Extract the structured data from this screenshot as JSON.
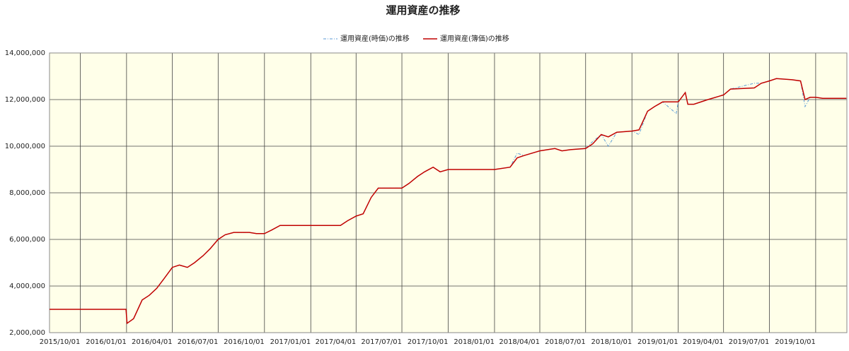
{
  "chart_data": {
    "type": "line",
    "title": "運用資産の推移",
    "x": [
      "2015/08/01",
      "2015/12/31",
      "2016/01/02",
      "2016/01/15",
      "2016/02/01",
      "2016/02/15",
      "2016/03/01",
      "2016/03/15",
      "2016/04/01",
      "2016/04/15",
      "2016/05/01",
      "2016/05/15",
      "2016/06/01",
      "2016/06/15",
      "2016/07/01",
      "2016/07/15",
      "2016/08/01",
      "2016/09/01",
      "2016/09/15",
      "2016/10/01",
      "2016/10/15",
      "2016/11/01",
      "2017/01/01",
      "2017/03/01",
      "2017/03/15",
      "2017/04/01",
      "2017/04/15",
      "2017/05/01",
      "2017/05/15",
      "2017/06/01",
      "2017/07/01",
      "2017/07/15",
      "2017/08/01",
      "2017/08/15",
      "2017/09/01",
      "2017/09/15",
      "2017/10/01",
      "2018/01/01",
      "2018/02/01",
      "2018/02/15",
      "2018/03/01",
      "2018/04/01",
      "2018/05/01",
      "2018/05/15",
      "2018/06/01",
      "2018/07/01",
      "2018/07/15",
      "2018/08/01",
      "2018/08/15",
      "2018/09/01",
      "2018/10/01",
      "2018/10/15",
      "2018/11/01",
      "2018/11/15",
      "2018/12/01",
      "2018/12/28",
      "2019/01/01",
      "2019/01/15",
      "2019/01/20",
      "2019/02/01",
      "2019/03/01",
      "2019/04/01",
      "2019/04/15",
      "2019/06/01",
      "2019/06/15",
      "2019/07/01",
      "2019/07/15",
      "2019/08/15",
      "2019/09/01",
      "2019/09/10",
      "2019/09/20",
      "2019/10/01",
      "2019/10/15",
      "2019/12/01"
    ],
    "series": [
      {
        "name": "運用資産(時価)の推移",
        "color": "#5b9bd5",
        "values": [
          3000000,
          3000000,
          2400000,
          2600000,
          3400000,
          3600000,
          3900000,
          4300000,
          4800000,
          4900000,
          4800000,
          5000000,
          5300000,
          5600000,
          6000000,
          6200000,
          6300000,
          6300000,
          6250000,
          6250000,
          6400000,
          6600000,
          6600000,
          6600000,
          6800000,
          7000000,
          7100000,
          7800000,
          8200000,
          8200000,
          8200000,
          8400000,
          8700000,
          8900000,
          9100000,
          8900000,
          9000000,
          9000000,
          9100000,
          9700000,
          9600000,
          9800000,
          9900000,
          9800000,
          9850000,
          9900000,
          10200000,
          10500000,
          10000000,
          10600000,
          10650000,
          10500000,
          11500000,
          11700000,
          11900000,
          11400000,
          11900000,
          12300000,
          11800000,
          11800000,
          12000000,
          12200000,
          12450000,
          12700000,
          12700000,
          12800000,
          12900000,
          12850000,
          12800000,
          11700000,
          12100000,
          12100000,
          12050000,
          12050000
        ]
      },
      {
        "name": "運用資産(簿価)の推移",
        "color": "#c00000",
        "values": [
          3000000,
          3000000,
          2400000,
          2600000,
          3400000,
          3600000,
          3900000,
          4300000,
          4800000,
          4900000,
          4800000,
          5000000,
          5300000,
          5600000,
          6000000,
          6200000,
          6300000,
          6300000,
          6250000,
          6250000,
          6400000,
          6600000,
          6600000,
          6600000,
          6800000,
          7000000,
          7100000,
          7800000,
          8200000,
          8200000,
          8200000,
          8400000,
          8700000,
          8900000,
          9100000,
          8900000,
          9000000,
          9000000,
          9100000,
          9500000,
          9600000,
          9800000,
          9900000,
          9800000,
          9850000,
          9900000,
          10100000,
          10500000,
          10400000,
          10600000,
          10650000,
          10700000,
          11500000,
          11700000,
          11900000,
          11900000,
          11900000,
          12300000,
          11800000,
          11800000,
          12000000,
          12200000,
          12450000,
          12500000,
          12700000,
          12800000,
          12900000,
          12850000,
          12800000,
          12000000,
          12100000,
          12100000,
          12050000,
          12050000
        ]
      }
    ],
    "xlim": [
      "2015/08/01",
      "2019/12/02"
    ],
    "xticks": [
      "2015/10/01",
      "2016/01/01",
      "2016/04/01",
      "2016/07/01",
      "2016/10/01",
      "2017/01/01",
      "2017/04/01",
      "2017/07/01",
      "2017/10/01",
      "2018/01/01",
      "2018/04/01",
      "2018/07/01",
      "2018/10/01",
      "2019/01/01",
      "2019/04/01",
      "2019/07/01",
      "2019/10/01"
    ],
    "ylim": [
      2000000,
      14000000
    ],
    "yticks": [
      {
        "value": 2000000,
        "label": "2,000,000"
      },
      {
        "value": 4000000,
        "label": "4,000,000"
      },
      {
        "value": 6000000,
        "label": "6,000,000"
      },
      {
        "value": 8000000,
        "label": "8,000,000"
      },
      {
        "value": 10000000,
        "label": "10,000,000"
      },
      {
        "value": 12000000,
        "label": "12,000,000"
      },
      {
        "value": 14000000,
        "label": "14,000,000"
      }
    ],
    "grid": true,
    "legend": "top"
  }
}
